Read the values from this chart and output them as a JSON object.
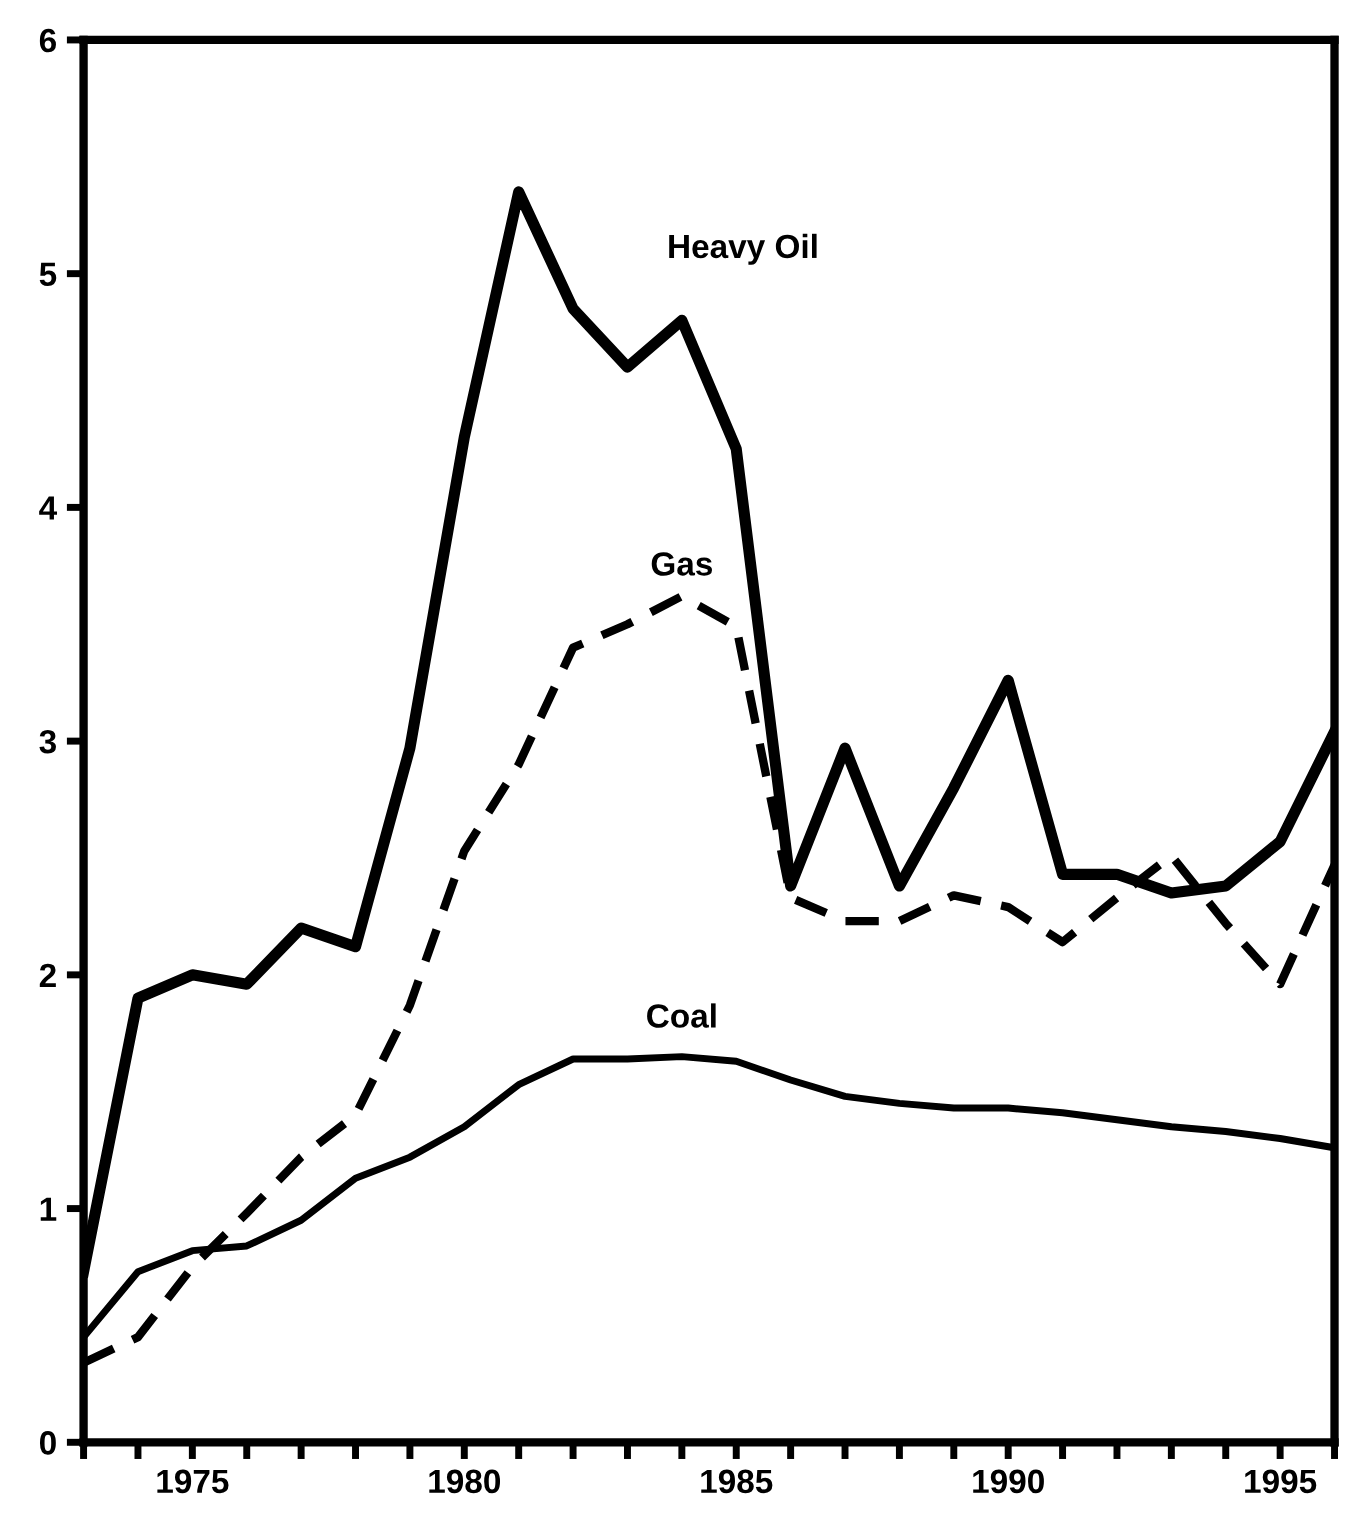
{
  "chart_data": {
    "type": "line",
    "x": [
      1973,
      1974,
      1975,
      1976,
      1977,
      1978,
      1979,
      1980,
      1981,
      1982,
      1983,
      1984,
      1985,
      1986,
      1987,
      1988,
      1989,
      1990,
      1991,
      1992,
      1993,
      1994,
      1995,
      1996
    ],
    "series": [
      {
        "name": "Heavy Oil",
        "color": "#000000",
        "line_style": "solid",
        "values": [
          0.73,
          1.9,
          2.0,
          1.96,
          2.2,
          2.12,
          2.97,
          4.3,
          5.35,
          4.85,
          4.6,
          4.8,
          4.25,
          2.38,
          2.97,
          2.38,
          2.8,
          3.26,
          2.43,
          2.43,
          2.35,
          2.38,
          2.57,
          3.04
        ]
      },
      {
        "name": "Gas",
        "color": "#000000",
        "line_style": "dashed",
        "values": [
          0.34,
          0.45,
          0.75,
          0.98,
          1.22,
          1.4,
          1.87,
          2.53,
          2.9,
          3.4,
          3.5,
          3.62,
          3.49,
          2.33,
          2.23,
          2.23,
          2.34,
          2.29,
          2.14,
          2.33,
          2.51,
          2.22,
          1.96,
          2.47
        ]
      },
      {
        "name": "Coal",
        "color": "#000000",
        "line_style": "solid",
        "values": [
          0.45,
          0.73,
          0.82,
          0.84,
          0.95,
          1.13,
          1.22,
          1.35,
          1.53,
          1.64,
          1.64,
          1.65,
          1.63,
          1.55,
          1.48,
          1.45,
          1.43,
          1.43,
          1.41,
          1.38,
          1.35,
          1.33,
          1.3,
          1.26
        ]
      }
    ],
    "xlim": [
      1973,
      1996
    ],
    "ylim": [
      0,
      6
    ],
    "xticks": [
      {
        "value": 1973,
        "label": null
      },
      {
        "value": 1974,
        "label": null
      },
      1975,
      {
        "value": 1976,
        "label": null
      },
      {
        "value": 1977,
        "label": null
      },
      {
        "value": 1978,
        "label": null
      },
      {
        "value": 1979,
        "label": null
      },
      1980,
      {
        "value": 1981,
        "label": null
      },
      {
        "value": 1982,
        "label": null
      },
      {
        "value": 1983,
        "label": null
      },
      {
        "value": 1984,
        "label": null
      },
      1985,
      {
        "value": 1986,
        "label": null
      },
      {
        "value": 1987,
        "label": null
      },
      {
        "value": 1988,
        "label": null
      },
      {
        "value": 1989,
        "label": null
      },
      1990,
      {
        "value": 1991,
        "label": null
      },
      {
        "value": 1992,
        "label": null
      },
      {
        "value": 1993,
        "label": null
      },
      {
        "value": 1994,
        "label": null
      },
      1995,
      {
        "value": 1996,
        "label": null
      }
    ],
    "yticks": [
      0,
      1,
      2,
      3,
      4,
      5,
      6
    ],
    "grid": false,
    "legend": false,
    "marker": "none"
  }
}
